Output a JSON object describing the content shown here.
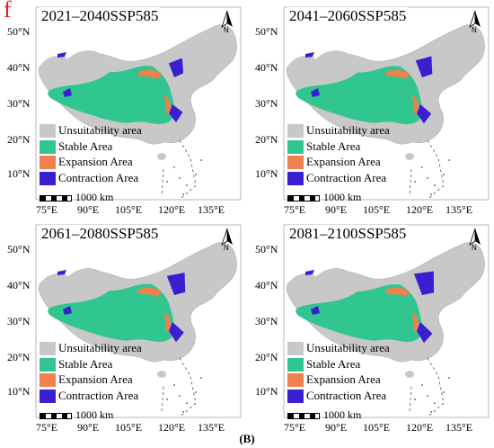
{
  "figure": {
    "panel_letter": "f",
    "caption": "(B)"
  },
  "colors": {
    "unsuitability": "#c8c8c8",
    "stable": "#31c58f",
    "expansion": "#f0804e",
    "contraction": "#3a1fd0",
    "background": "#ffffff"
  },
  "legend": {
    "items": [
      {
        "label": "Unsuitability area",
        "color": "#c8c8c8"
      },
      {
        "label": "Stable Area",
        "color": "#31c58f"
      },
      {
        "label": "Expansion Area",
        "color": "#f0804e"
      },
      {
        "label": "Contraction Area",
        "color": "#3a1fd0"
      }
    ],
    "scale_label": "1000 km"
  },
  "axes": {
    "lat_labels": [
      "50°N",
      "40°N",
      "30°N",
      "20°N",
      "10°N"
    ],
    "lon_labels": [
      "75°E",
      "90°E",
      "105°E",
      "120°E",
      "135°E"
    ],
    "north_label": "N"
  },
  "panels": [
    {
      "title": "2021–2040SSP585",
      "stable_extent": 1.0,
      "contraction_extent": 0.35
    },
    {
      "title": "2041–2060SSP585",
      "stable_extent": 0.95,
      "contraction_extent": 0.55
    },
    {
      "title": "2061–2080SSP585",
      "stable_extent": 0.9,
      "contraction_extent": 0.7
    },
    {
      "title": "2081–2100SSP585",
      "stable_extent": 0.8,
      "contraction_extent": 0.85
    }
  ]
}
